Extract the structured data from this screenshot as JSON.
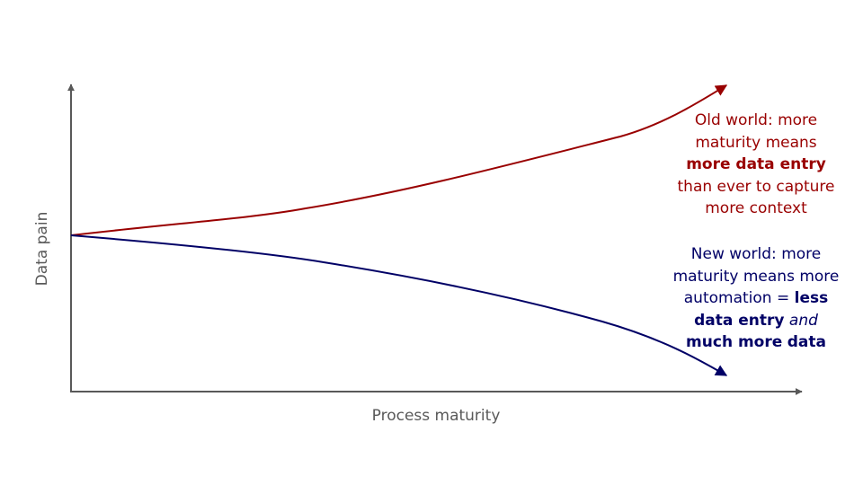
{
  "axes": {
    "x_label": "Process maturity",
    "y_label": "Data pain"
  },
  "colors": {
    "axis": "#595959",
    "old_world": "#990000",
    "new_world": "#000066"
  },
  "old_world": {
    "t1": "Old world: more maturity means ",
    "b1": "more data entry",
    "t2": " than ever to capture more context"
  },
  "new_world": {
    "t1": "New world: more maturity means more automation = ",
    "b1": "less data entry",
    "t2": " ",
    "i1": "and",
    "t3": " ",
    "b2": "much more",
    "t4": " ",
    "b3": "data"
  }
}
